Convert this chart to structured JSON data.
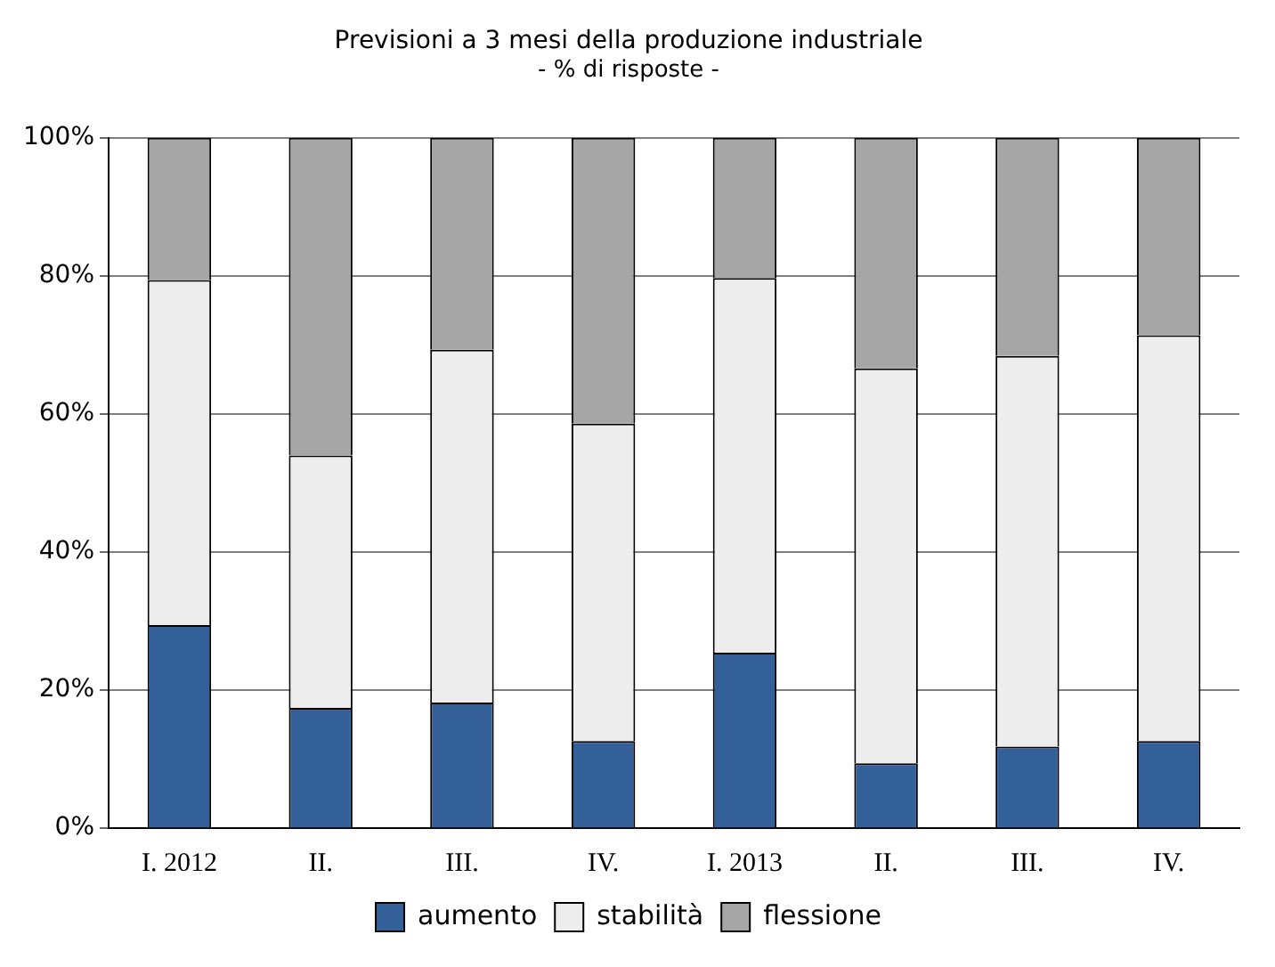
{
  "chart_data": {
    "type": "bar",
    "title": "Previsioni a 3 mesi della produzione industriale",
    "subtitle": "- % di risposte -",
    "categories": [
      "I. 2012",
      "II.",
      "III.",
      "IV.",
      "I. 2013",
      "II.",
      "III.",
      "IV."
    ],
    "stacked": true,
    "series": [
      {
        "name": "aumento",
        "color": "#34609a",
        "values": [
          29.4,
          17.4,
          18.2,
          12.6,
          25.4,
          9.4,
          11.8,
          12.6
        ]
      },
      {
        "name": "stabilità",
        "color": "#ededed",
        "values": [
          50,
          36.6,
          51.1,
          46,
          54.3,
          57.2,
          56.6,
          58.8
        ]
      },
      {
        "name": "flessione",
        "color": "#a6a6a6",
        "values": [
          20.6,
          46,
          30.7,
          41.4,
          20.3,
          33.4,
          31.6,
          28.6
        ]
      }
    ],
    "ylim": [
      0,
      100
    ],
    "yticks": [
      {
        "value": 0,
        "label": "0%"
      },
      {
        "value": 20,
        "label": "20%"
      },
      {
        "value": 40,
        "label": "40%"
      },
      {
        "value": 60,
        "label": "60%"
      },
      {
        "value": 80,
        "label": "80%"
      },
      {
        "value": 100,
        "label": "100%"
      }
    ],
    "grid": "y",
    "legend": "bottom"
  }
}
